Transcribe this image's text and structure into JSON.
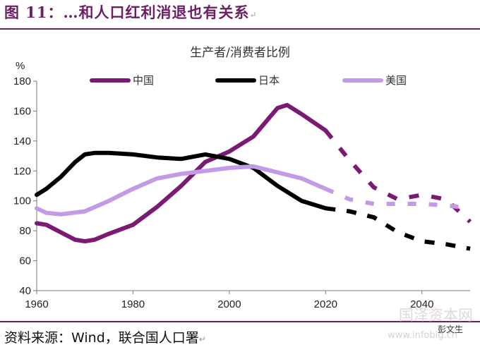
{
  "figure_title": "图 11：…和人口红利消退也有关系",
  "title_mark": "↵",
  "source": "资料来源：Wind，联合国人口署",
  "source_mark": "↵",
  "watermark": "国泽资本网",
  "watermark_sub": "www.infobig.cn",
  "wechat_label": "彭文生",
  "colors": {
    "china": "#7b1a73",
    "japan": "#000000",
    "usa": "#c39ae6",
    "rule": "#6d1f63"
  },
  "chart_data": {
    "type": "line",
    "title": "生产者/消费者比例",
    "ylabel": "%",
    "xlabel": "",
    "xlim": [
      1960,
      2050
    ],
    "ylim": [
      40,
      180
    ],
    "xticks": [
      1960,
      1980,
      2000,
      2020,
      2040
    ],
    "yticks": [
      40,
      60,
      80,
      100,
      120,
      140,
      160,
      180
    ],
    "grid": false,
    "legend_position": "top",
    "projection_start": 2020,
    "series": [
      {
        "name": "中国",
        "color": "#7b1a73",
        "x": [
          1960,
          1962,
          1965,
          1968,
          1970,
          1972,
          1975,
          1980,
          1985,
          1990,
          1995,
          2000,
          2005,
          2010,
          2012,
          2015,
          2020,
          2025,
          2030,
          2035,
          2040,
          2045,
          2050
        ],
        "y": [
          85,
          84,
          79,
          74,
          73,
          74,
          78,
          84,
          96,
          110,
          126,
          133,
          143,
          162,
          164,
          158,
          147,
          127,
          109,
          101,
          104,
          101,
          86
        ]
      },
      {
        "name": "日本",
        "color": "#000000",
        "x": [
          1960,
          1962,
          1965,
          1968,
          1970,
          1972,
          1975,
          1980,
          1985,
          1990,
          1995,
          2000,
          2005,
          2010,
          2015,
          2020,
          2025,
          2030,
          2035,
          2040,
          2045,
          2050
        ],
        "y": [
          104,
          108,
          116,
          126,
          131,
          132,
          132,
          131,
          129,
          128,
          131,
          128,
          122,
          110,
          100,
          95,
          93,
          89,
          79,
          73,
          71,
          68
        ]
      },
      {
        "name": "美国",
        "color": "#c39ae6",
        "x": [
          1960,
          1962,
          1965,
          1970,
          1975,
          1980,
          1985,
          1990,
          1995,
          2000,
          2005,
          2010,
          2015,
          2020,
          2025,
          2030,
          2035,
          2040,
          2045,
          2050
        ],
        "y": [
          95,
          92,
          91,
          93,
          100,
          108,
          115,
          118,
          120,
          122,
          123,
          119,
          115,
          108,
          101,
          98,
          98,
          98,
          97,
          95
        ]
      }
    ]
  }
}
